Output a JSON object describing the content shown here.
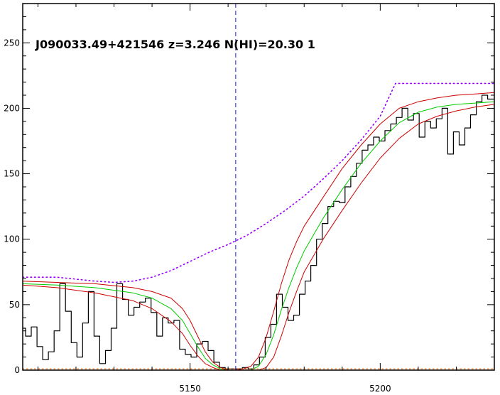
{
  "chart_data": {
    "type": "line",
    "title": "J090033.49+421546 z=3.246 N(HI)=20.30 1",
    "xlabel": "",
    "ylabel": "",
    "xlim": [
      5106,
      5230
    ],
    "ylim": [
      0,
      280
    ],
    "x_ticks": [
      5150,
      5200
    ],
    "y_ticks": [
      0,
      50,
      100,
      150,
      200,
      250
    ],
    "grid": false,
    "reference_line": {
      "x": 5162,
      "style": "dashed",
      "color": "#1a1acc"
    },
    "colors": {
      "data": "#000000",
      "fit": "#00cc00",
      "fit_bounds": "#cc0000",
      "continuum": "#9900ff",
      "zero_level": "#ff6600",
      "reference": "#1a1acc"
    },
    "series": [
      {
        "style": "step",
        "x": [
          5106,
          5107.5,
          5109,
          5110.5,
          5112,
          5113.5,
          5115,
          5116.5,
          5118,
          5119.5,
          5121,
          5122.5,
          5124,
          5125.5,
          5127,
          5128.5,
          5130,
          5131.5,
          5133,
          5134.5,
          5136,
          5137.5,
          5139,
          5140.5,
          5142,
          5143.5,
          5145,
          5146.5,
          5148,
          5149.5,
          5151,
          5152.5,
          5154,
          5155.5,
          5157,
          5158.5,
          5160,
          5161.5,
          5163,
          5164.5,
          5166,
          5167.5,
          5169,
          5170.5,
          5172,
          5173.5,
          5175,
          5176.5,
          5178,
          5179.5,
          5181,
          5182.5,
          5184,
          5185.5,
          5187,
          5188.5,
          5190,
          5191.5,
          5193,
          5194.5,
          5196,
          5197.5,
          5199,
          5200.5,
          5202,
          5203.5,
          5205,
          5206.5,
          5208,
          5209.5,
          5211,
          5212.5,
          5214,
          5215.5,
          5217,
          5218.5,
          5220,
          5221.5,
          5223,
          5224.5,
          5226,
          5227.5,
          5229
        ],
        "y": [
          32,
          26,
          33,
          18,
          8,
          14,
          30,
          66,
          45,
          21,
          10,
          36,
          60,
          26,
          5,
          15,
          32,
          66,
          54,
          42,
          48,
          52,
          55,
          44,
          26,
          40,
          36,
          38,
          16,
          12,
          10,
          20,
          22,
          15,
          6,
          2,
          1,
          1,
          1,
          2,
          1,
          4,
          10,
          25,
          35,
          58,
          48,
          38,
          42,
          58,
          68,
          80,
          100,
          112,
          125,
          129,
          128,
          140,
          148,
          158,
          168,
          172,
          178,
          175,
          183,
          188,
          193,
          200,
          191,
          196,
          178,
          190,
          185,
          192,
          200,
          165,
          182,
          172,
          185,
          195,
          205,
          210,
          207
        ]
      },
      {
        "style": "smooth",
        "x": [
          5106,
          5115,
          5125,
          5135,
          5140,
          5145,
          5148,
          5150,
          5152,
          5154,
          5156,
          5158,
          5160,
          5162,
          5164,
          5166,
          5168,
          5170,
          5172,
          5174,
          5176,
          5178,
          5180,
          5185,
          5190,
          5195,
          5200,
          5205,
          5210,
          5215,
          5220,
          5225,
          5230
        ],
        "y": [
          66,
          65,
          63,
          59,
          55,
          47,
          38,
          28,
          18,
          9,
          4,
          1,
          0,
          0,
          0,
          0,
          3,
          12,
          27,
          46,
          63,
          78,
          91,
          116,
          138,
          158,
          175,
          189,
          197,
          201,
          203,
          204,
          205
        ]
      },
      {
        "style": "smooth",
        "x": [
          5106,
          5115,
          5125,
          5135,
          5140,
          5145,
          5148,
          5150,
          5152,
          5154,
          5156,
          5158,
          5160,
          5162,
          5164,
          5166,
          5168,
          5170,
          5172,
          5174,
          5176,
          5178,
          5180,
          5185,
          5190,
          5195,
          5200,
          5205,
          5210,
          5215,
          5220,
          5225,
          5230
        ],
        "y": [
          68,
          67,
          66,
          63,
          60,
          55,
          47,
          38,
          26,
          14,
          6,
          2,
          0,
          0,
          1,
          3,
          10,
          25,
          45,
          66,
          84,
          98,
          110,
          132,
          154,
          172,
          188,
          200,
          205,
          208,
          210,
          211,
          212
        ]
      },
      {
        "style": "smooth",
        "x": [
          5106,
          5115,
          5125,
          5135,
          5140,
          5145,
          5148,
          5150,
          5152,
          5154,
          5156,
          5158,
          5160,
          5162,
          5164,
          5166,
          5168,
          5170,
          5172,
          5174,
          5176,
          5178,
          5180,
          5185,
          5190,
          5195,
          5200,
          5205,
          5210,
          5215,
          5220,
          5225,
          5230
        ],
        "y": [
          65,
          63,
          59,
          53,
          47,
          37,
          28,
          19,
          11,
          5,
          2,
          0,
          0,
          0,
          0,
          0,
          0,
          2,
          10,
          26,
          44,
          60,
          75,
          100,
          122,
          143,
          162,
          177,
          188,
          194,
          198,
          201,
          203
        ]
      },
      {
        "style": "dotted",
        "x": [
          5106,
          5115,
          5125,
          5130,
          5135,
          5140,
          5145,
          5150,
          5155,
          5160,
          5165,
          5170,
          5175,
          5180,
          5185,
          5190,
          5195,
          5200,
          5204,
          5210,
          5220,
          5230
        ],
        "y": [
          71,
          71,
          68,
          67,
          68,
          71,
          76,
          83,
          90,
          96,
          103,
          112,
          122,
          133,
          146,
          160,
          176,
          194,
          219,
          219,
          219,
          219
        ]
      },
      {
        "style": "dotted",
        "x": [
          5106,
          5230
        ],
        "y": [
          1,
          1
        ]
      }
    ]
  }
}
